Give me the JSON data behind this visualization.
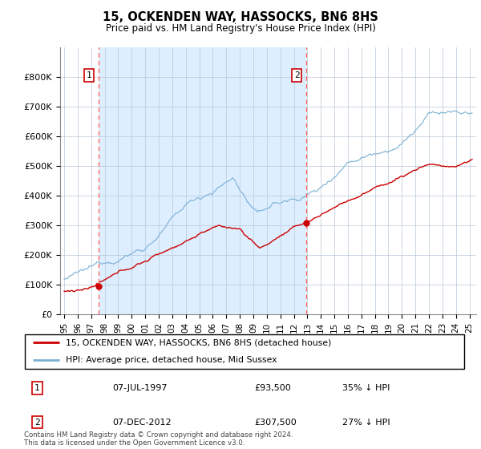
{
  "title": "15, OCKENDEN WAY, HASSOCKS, BN6 8HS",
  "subtitle": "Price paid vs. HM Land Registry's House Price Index (HPI)",
  "legend_line1": "15, OCKENDEN WAY, HASSOCKS, BN6 8HS (detached house)",
  "legend_line2": "HPI: Average price, detached house, Mid Sussex",
  "sale1_date": "07-JUL-1997",
  "sale1_price": "£93,500",
  "sale1_note": "35% ↓ HPI",
  "sale2_date": "07-DEC-2012",
  "sale2_price": "£307,500",
  "sale2_note": "27% ↓ HPI",
  "footer": "Contains HM Land Registry data © Crown copyright and database right 2024.\nThis data is licensed under the Open Government Licence v3.0.",
  "hpi_color": "#7ab0d4",
  "price_color": "#cc0000",
  "vline_color": "#ff6666",
  "shade_color": "#ddeeff",
  "background_color": "#ffffff",
  "ylim": [
    0,
    900000
  ],
  "yticks": [
    0,
    100000,
    200000,
    300000,
    400000,
    500000,
    600000,
    700000,
    800000
  ],
  "ytick_labels": [
    "£0",
    "£100K",
    "£200K",
    "£300K",
    "£400K",
    "£500K",
    "£600K",
    "£700K",
    "£800K"
  ],
  "sale1_year": 1997.52,
  "sale1_value": 93500,
  "sale2_year": 2012.92,
  "sale2_value": 307500,
  "xmin": 1994.7,
  "xmax": 2025.5
}
